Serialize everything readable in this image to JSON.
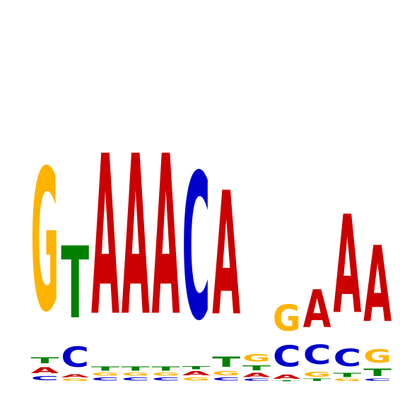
{
  "sequence_logo": {
    "alphabet": [
      "A",
      "C",
      "G",
      "T"
    ],
    "colors": {
      "A": "#CC0000",
      "C": "#0000CC",
      "G": "#FFB300",
      "T": "#008000"
    },
    "max_bits": 2,
    "positions": [
      {
        "stack": [
          {
            "l": "C",
            "h": 0.04
          },
          {
            "l": "A",
            "h": 0.06
          },
          {
            "l": "T",
            "h": 0.06
          },
          {
            "l": "G",
            "h": 1.4
          }
        ]
      },
      {
        "stack": [
          {
            "l": "G",
            "h": 0.02
          },
          {
            "l": "A",
            "h": 0.03
          },
          {
            "l": "C",
            "h": 0.2
          },
          {
            "l": "T",
            "h": 0.71
          }
        ]
      },
      {
        "stack": [
          {
            "l": "C",
            "h": 0.03
          },
          {
            "l": "G",
            "h": 0.03
          },
          {
            "l": "T",
            "h": 0.04
          },
          {
            "l": "A",
            "h": 1.58
          }
        ]
      },
      {
        "stack": [
          {
            "l": "C",
            "h": 0.03
          },
          {
            "l": "G",
            "h": 0.03
          },
          {
            "l": "T",
            "h": 0.04
          },
          {
            "l": "A",
            "h": 1.58
          }
        ]
      },
      {
        "stack": [
          {
            "l": "C",
            "h": 0.03
          },
          {
            "l": "G",
            "h": 0.03
          },
          {
            "l": "T",
            "h": 0.04
          },
          {
            "l": "A",
            "h": 1.58
          }
        ]
      },
      {
        "stack": [
          {
            "l": "G",
            "h": 0.03
          },
          {
            "l": "A",
            "h": 0.04
          },
          {
            "l": "T",
            "h": 0.03
          },
          {
            "l": "C",
            "h": 1.44
          }
        ]
      },
      {
        "stack": [
          {
            "l": "C",
            "h": 0.03
          },
          {
            "l": "G",
            "h": 0.04
          },
          {
            "l": "T",
            "h": 0.1
          },
          {
            "l": "A",
            "h": 1.22
          }
        ]
      },
      {
        "stack": [
          {
            "l": "C",
            "h": 0.02
          },
          {
            "l": "A",
            "h": 0.04
          },
          {
            "l": "T",
            "h": 0.05
          },
          {
            "l": "G",
            "h": 0.07
          }
        ]
      },
      {
        "stack": [
          {
            "l": "T",
            "h": 0.01
          },
          {
            "l": "A",
            "h": 0.04
          },
          {
            "l": "C",
            "h": 0.21
          },
          {
            "l": "G",
            "h": 0.26
          }
        ]
      },
      {
        "stack": [
          {
            "l": "T",
            "h": 0.02
          },
          {
            "l": "G",
            "h": 0.05
          },
          {
            "l": "C",
            "h": 0.19
          },
          {
            "l": "A",
            "h": 0.37
          }
        ]
      },
      {
        "stack": [
          {
            "l": "G",
            "h": 0.02
          },
          {
            "l": "T",
            "h": 0.04
          },
          {
            "l": "C",
            "h": 0.17
          },
          {
            "l": "A",
            "h": 0.97
          }
        ]
      },
      {
        "stack": [
          {
            "l": "C",
            "h": 0.02
          },
          {
            "l": "T",
            "h": 0.07
          },
          {
            "l": "G",
            "h": 0.13
          },
          {
            "l": "A",
            "h": 0.75
          }
        ]
      }
    ]
  }
}
